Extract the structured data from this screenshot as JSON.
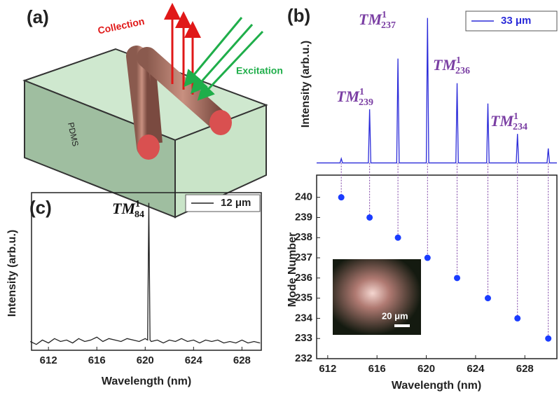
{
  "diagram": {
    "label": "(a)",
    "collection": "Collection",
    "excitation": "Excitation",
    "material": "PDMS"
  },
  "chart_data": [
    {
      "type": "line",
      "label": "(b)",
      "ylabel": "Intensity (arb.u.)",
      "xlim": [
        611.1,
        630.6
      ],
      "ylim": [
        -0.06,
        1.1
      ],
      "series": [
        {
          "name": "33 μm",
          "color": "#2b2bd9",
          "x": [
            611.1,
            613.0,
            613.1,
            613.2,
            615.3,
            615.4,
            615.5,
            617.6,
            617.7,
            617.8,
            620.0,
            620.1,
            620.2,
            622.4,
            622.5,
            622.6,
            624.9,
            625.0,
            625.1,
            627.3,
            627.4,
            627.5,
            629.8,
            629.9,
            630.0,
            630.6
          ],
          "values": [
            0,
            0,
            0.03,
            0,
            0,
            0.37,
            0,
            0,
            0.72,
            0,
            0,
            1.0,
            0,
            0,
            0.55,
            0,
            0,
            0.41,
            0,
            0,
            0.2,
            0,
            0,
            0.1,
            0,
            0
          ]
        }
      ],
      "annotations": [
        {
          "text": "TM",
          "sup": "1",
          "sub": "239"
        },
        {
          "text": "TM",
          "sup": "1",
          "sub": "237"
        },
        {
          "text": "TM",
          "sup": "1",
          "sub": "236"
        },
        {
          "text": "TM",
          "sup": "1",
          "sub": "234"
        }
      ],
      "annotation_color": "#7a3ea3"
    },
    {
      "type": "scatter",
      "xlabel": "Wavelength (nm)",
      "ylabel": "Mode Number",
      "xlim": [
        611.1,
        630.6
      ],
      "ylim": [
        232,
        241.1
      ],
      "xticks": [
        612,
        616,
        620,
        624,
        628
      ],
      "yticks": [
        232,
        233,
        234,
        235,
        236,
        237,
        238,
        239,
        240
      ],
      "x": [
        613.1,
        615.4,
        617.7,
        620.1,
        622.5,
        625.0,
        627.4,
        629.9
      ],
      "values": [
        240,
        239,
        238,
        237,
        236,
        235,
        234,
        233
      ],
      "color": "#1a3cff",
      "inset_label": "20 μm"
    },
    {
      "type": "line",
      "label": "(c)",
      "xlabel": "Wavelength (nm)",
      "ylabel": "Intensity (arb.u.)",
      "xlim": [
        610.6,
        629.6
      ],
      "ylim": [
        -0.01,
        1.07
      ],
      "xticks": [
        612,
        616,
        620,
        624,
        628
      ],
      "series": [
        {
          "name": "12 μm",
          "color": "#222222",
          "x": [
            610.5,
            611,
            611.5,
            612,
            612.5,
            613,
            613.5,
            614,
            614.5,
            615,
            615.5,
            616,
            616.5,
            617,
            617.5,
            618,
            618.5,
            619,
            619.5,
            620,
            620.2,
            620.3,
            620.4,
            620.5,
            621,
            621.5,
            622,
            622.5,
            623,
            623.5,
            624,
            624.5,
            625,
            625.5,
            626,
            626.5,
            627,
            627.5,
            628,
            628.5,
            629,
            629.5
          ],
          "values": [
            0.05,
            0.03,
            0.06,
            0.04,
            0.07,
            0.05,
            0.06,
            0.04,
            0.07,
            0.05,
            0.06,
            0.08,
            0.05,
            0.07,
            0.06,
            0.05,
            0.07,
            0.06,
            0.05,
            0.07,
            0.06,
            1.0,
            0.06,
            0.05,
            0.06,
            0.04,
            0.06,
            0.05,
            0.07,
            0.05,
            0.06,
            0.04,
            0.06,
            0.05,
            0.06,
            0.04,
            0.05,
            0.04,
            0.06,
            0.04,
            0.05,
            0.04
          ]
        }
      ],
      "annotations": [
        {
          "text": "TM",
          "sup": "1",
          "sub": "84"
        }
      ],
      "annotation_color": "#111111"
    }
  ]
}
